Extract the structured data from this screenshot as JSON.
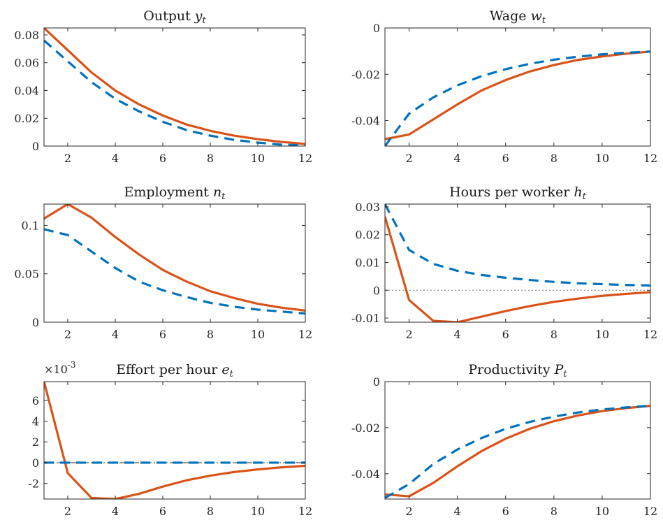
{
  "colors": {
    "solid": "#D95319",
    "dashed": "#0072BD",
    "axis": "#262626"
  },
  "chart_data": [
    {
      "type": "line",
      "title": "Output ",
      "title_symbol": "y",
      "title_subscript": "t",
      "x": [
        1,
        2,
        3,
        4,
        5,
        6,
        7,
        8,
        9,
        10,
        11,
        12
      ],
      "xlim": [
        1,
        12
      ],
      "xticks": [
        2,
        4,
        6,
        8,
        10,
        12
      ],
      "ylim": [
        0,
        0.085
      ],
      "yticks": [
        0,
        0.02,
        0.04,
        0.06,
        0.08
      ],
      "ytick_labels": [
        "0",
        "0.02",
        "0.04",
        "0.06",
        "0.08"
      ],
      "zero_line": "dotted",
      "series": [
        {
          "style": "solid",
          "values": [
            0.085,
            0.069,
            0.053,
            0.04,
            0.03,
            0.022,
            0.0155,
            0.011,
            0.0075,
            0.005,
            0.003,
            0.0015
          ]
        },
        {
          "style": "dashed",
          "values": [
            0.076,
            0.061,
            0.046,
            0.034,
            0.025,
            0.0175,
            0.0115,
            0.0075,
            0.0045,
            0.0025,
            0.001,
            0.0005
          ]
        }
      ]
    },
    {
      "type": "line",
      "title": "Wage ",
      "title_symbol": "w",
      "title_subscript": "t",
      "x": [
        1,
        2,
        3,
        4,
        5,
        6,
        7,
        8,
        9,
        10,
        11,
        12
      ],
      "xlim": [
        1,
        12
      ],
      "xticks": [
        2,
        4,
        6,
        8,
        10,
        12
      ],
      "ylim": [
        -0.051,
        0
      ],
      "yticks": [
        -0.04,
        -0.02,
        0
      ],
      "ytick_labels": [
        "-0.04",
        "-0.02",
        "0"
      ],
      "zero_line": "dotted",
      "series": [
        {
          "style": "solid",
          "values": [
            -0.048,
            -0.046,
            -0.0395,
            -0.033,
            -0.027,
            -0.0225,
            -0.0188,
            -0.016,
            -0.0138,
            -0.0123,
            -0.0111,
            -0.0102
          ]
        },
        {
          "style": "dashed",
          "values": [
            -0.051,
            -0.037,
            -0.03,
            -0.0248,
            -0.0208,
            -0.0178,
            -0.0155,
            -0.0137,
            -0.0124,
            -0.0114,
            -0.0107,
            -0.0102
          ]
        }
      ]
    },
    {
      "type": "line",
      "title": "Employment ",
      "title_symbol": "n",
      "title_subscript": "t",
      "x": [
        1,
        2,
        3,
        4,
        5,
        6,
        7,
        8,
        9,
        10,
        11,
        12
      ],
      "xlim": [
        1,
        12
      ],
      "xticks": [
        2,
        4,
        6,
        8,
        10,
        12
      ],
      "ylim": [
        0,
        0.122
      ],
      "yticks": [
        0,
        0.05,
        0.1
      ],
      "ytick_labels": [
        "0",
        "0.05",
        "0.1"
      ],
      "zero_line": "dotted",
      "series": [
        {
          "style": "solid",
          "values": [
            0.107,
            0.122,
            0.108,
            0.088,
            0.07,
            0.054,
            0.042,
            0.032,
            0.025,
            0.019,
            0.015,
            0.012
          ]
        },
        {
          "style": "dashed",
          "values": [
            0.096,
            0.09,
            0.073,
            0.056,
            0.042,
            0.033,
            0.026,
            0.02,
            0.016,
            0.013,
            0.011,
            0.009
          ]
        }
      ]
    },
    {
      "type": "line",
      "title": "Hours per worker ",
      "title_symbol": "h",
      "title_subscript": "t",
      "x": [
        1,
        2,
        3,
        4,
        5,
        6,
        7,
        8,
        9,
        10,
        11,
        12
      ],
      "xlim": [
        1,
        12
      ],
      "xticks": [
        2,
        4,
        6,
        8,
        10,
        12
      ],
      "ylim": [
        -0.0115,
        0.031
      ],
      "yticks": [
        -0.01,
        0,
        0.01,
        0.02,
        0.03
      ],
      "ytick_labels": [
        "-0.01",
        "0",
        "0.01",
        "0.02",
        "0.03"
      ],
      "zero_line": "dotted",
      "series": [
        {
          "style": "solid",
          "values": [
            0.0265,
            -0.0035,
            -0.011,
            -0.0115,
            -0.0095,
            -0.0075,
            -0.0057,
            -0.0042,
            -0.003,
            -0.002,
            -0.0013,
            -0.0007
          ]
        },
        {
          "style": "dashed",
          "values": [
            0.031,
            0.0145,
            0.0095,
            0.007,
            0.0055,
            0.0045,
            0.0037,
            0.003,
            0.0025,
            0.0022,
            0.0019,
            0.0017
          ]
        }
      ]
    },
    {
      "type": "line",
      "title": "Effort per hour ",
      "title_symbol": "e",
      "title_subscript": "t",
      "exponent_label": "×10",
      "exponent_power": "-3",
      "x": [
        1,
        2,
        3,
        4,
        5,
        6,
        7,
        8,
        9,
        10,
        11,
        12
      ],
      "xlim": [
        1,
        12
      ],
      "xticks": [
        2,
        4,
        6,
        8,
        10,
        12
      ],
      "ylim": [
        -3.5,
        7.8
      ],
      "yticks": [
        -2,
        0,
        2,
        4,
        6
      ],
      "ytick_labels": [
        "-2",
        "0",
        "2",
        "4",
        "6"
      ],
      "zero_line": "dashdot",
      "series": [
        {
          "style": "solid",
          "values": [
            7.8,
            -1.0,
            -3.4,
            -3.5,
            -3.0,
            -2.3,
            -1.7,
            -1.25,
            -0.9,
            -0.65,
            -0.45,
            -0.3
          ]
        },
        {
          "style": "dashed",
          "values": [
            0,
            0,
            0,
            0,
            0,
            0,
            0,
            0,
            0,
            0,
            0,
            0
          ]
        }
      ]
    },
    {
      "type": "line",
      "title": "Productivity ",
      "title_symbol": "P",
      "title_subscript": "t",
      "x": [
        1,
        2,
        3,
        4,
        5,
        6,
        7,
        8,
        9,
        10,
        11,
        12
      ],
      "xlim": [
        1,
        12
      ],
      "xticks": [
        2,
        4,
        6,
        8,
        10,
        12
      ],
      "ylim": [
        -0.051,
        0
      ],
      "yticks": [
        -0.04,
        -0.02,
        0
      ],
      "ytick_labels": [
        "-0.04",
        "-0.02",
        "0"
      ],
      "zero_line": "dotted",
      "series": [
        {
          "style": "solid",
          "values": [
            -0.049,
            -0.0498,
            -0.044,
            -0.0368,
            -0.0302,
            -0.0248,
            -0.0205,
            -0.0172,
            -0.0147,
            -0.0128,
            -0.0115,
            -0.0105
          ]
        },
        {
          "style": "dashed",
          "values": [
            -0.0505,
            -0.0445,
            -0.0358,
            -0.0295,
            -0.0245,
            -0.0205,
            -0.0175,
            -0.0152,
            -0.0134,
            -0.0121,
            -0.0112,
            -0.0105
          ]
        }
      ]
    }
  ]
}
